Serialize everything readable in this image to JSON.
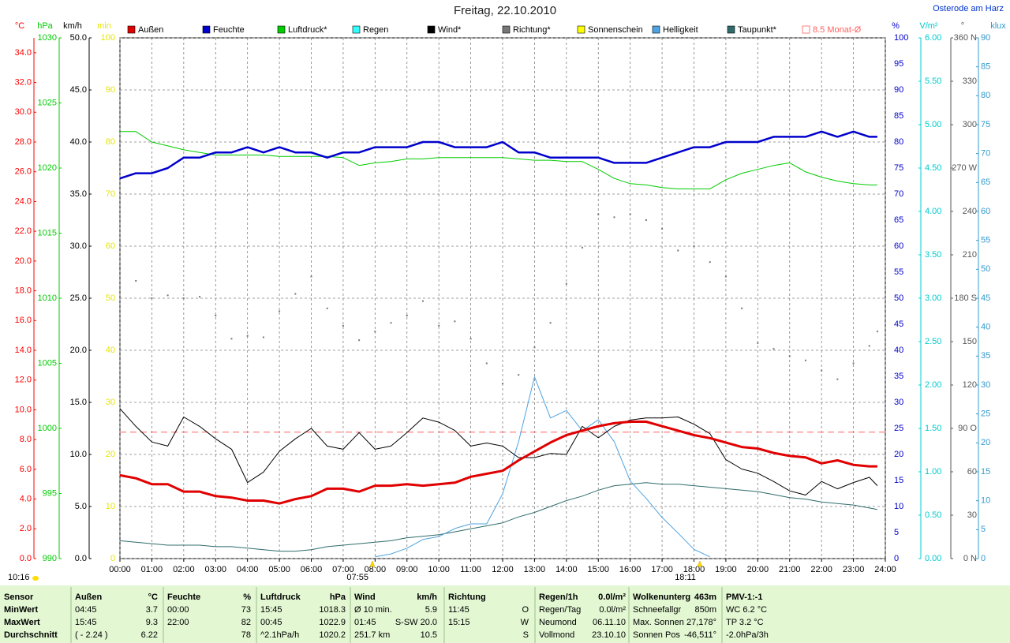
{
  "chart_data": {
    "type": "line",
    "title": "Freitag, 22.10.2010",
    "location": "Osterode am Harz",
    "time": "10:16",
    "x": [
      0,
      0.5,
      1,
      1.5,
      2,
      2.5,
      3,
      3.5,
      4,
      4.5,
      5,
      5.5,
      6,
      6.5,
      7,
      7.5,
      8,
      8.5,
      9,
      9.5,
      10,
      10.5,
      11,
      11.5,
      12,
      12.5,
      13,
      13.5,
      14,
      14.5,
      15,
      15.5,
      16,
      16.5,
      17,
      17.5,
      18,
      18.5,
      19,
      19.5,
      20,
      20.5,
      21,
      21.5,
      22,
      22.5,
      23,
      23.5,
      23.75
    ],
    "xlim": [
      0,
      24
    ],
    "xticks": [
      {
        "value": 0,
        "label": "00:00"
      },
      {
        "value": 1,
        "label": "01:00"
      },
      {
        "value": 2,
        "label": "02:00"
      },
      {
        "value": 3,
        "label": "03:00"
      },
      {
        "value": 4,
        "label": "04:00"
      },
      {
        "value": 5,
        "label": "05:00"
      },
      {
        "value": 6,
        "label": "06:00"
      },
      {
        "value": 7,
        "label": "07:00"
      },
      {
        "value": 8,
        "label": "08:00"
      },
      {
        "value": 9,
        "label": "09:00"
      },
      {
        "value": 10,
        "label": "10:00"
      },
      {
        "value": 11,
        "label": "11:00"
      },
      {
        "value": 12,
        "label": "12:00"
      },
      {
        "value": 13,
        "label": "13:00"
      },
      {
        "value": 14,
        "label": "14:00"
      },
      {
        "value": 15,
        "label": "15:00"
      },
      {
        "value": 16,
        "label": "16:00"
      },
      {
        "value": 17,
        "label": "17:00"
      },
      {
        "value": 18,
        "label": "18:00"
      },
      {
        "value": 19,
        "label": "19:00"
      },
      {
        "value": 20,
        "label": "20:00"
      },
      {
        "value": 21,
        "label": "21:00"
      },
      {
        "value": 22,
        "label": "22:00"
      },
      {
        "value": 23,
        "label": "23:00"
      },
      {
        "value": 24,
        "label": "24:00"
      }
    ],
    "grid": true,
    "grid_axis": "km/h",
    "axes": [
      {
        "title": "°C",
        "color": "#ff0000",
        "lim": [
          0,
          35
        ],
        "ticks": [
          {
            "value": 0,
            "label": "0.0"
          },
          {
            "value": 2,
            "label": "2.0"
          },
          {
            "value": 4,
            "label": "4.0"
          },
          {
            "value": 6,
            "label": "6.0"
          },
          {
            "value": 8,
            "label": "8.0"
          },
          {
            "value": 10,
            "label": "10.0"
          },
          {
            "value": 12,
            "label": "12.0"
          },
          {
            "value": 14,
            "label": "14.0"
          },
          {
            "value": 16,
            "label": "16.0"
          },
          {
            "value": 18,
            "label": "18.0"
          },
          {
            "value": 20,
            "label": "20.0"
          },
          {
            "value": 22,
            "label": "22.0"
          },
          {
            "value": 24,
            "label": "24.0"
          },
          {
            "value": 26,
            "label": "26.0"
          },
          {
            "value": 28,
            "label": "28.0"
          },
          {
            "value": 30,
            "label": "30.0"
          },
          {
            "value": 32,
            "label": "32.0"
          },
          {
            "value": 34,
            "label": "34.0"
          }
        ]
      },
      {
        "title": "hPa",
        "color": "#00cc00",
        "lim": [
          990,
          1030
        ],
        "ticks": [
          990,
          995,
          1000,
          1005,
          1010,
          1015,
          1020,
          1025,
          1030
        ]
      },
      {
        "title": "km/h",
        "color": "#000000",
        "lim": [
          0,
          50
        ],
        "ticks": [
          {
            "value": 0,
            "label": "0.0"
          },
          {
            "value": 5,
            "label": "5.0"
          },
          {
            "value": 10,
            "label": "10.0"
          },
          {
            "value": 15,
            "label": "15.0"
          },
          {
            "value": 20,
            "label": "20.0"
          },
          {
            "value": 25,
            "label": "25.0"
          },
          {
            "value": 30,
            "label": "30.0"
          },
          {
            "value": 35,
            "label": "35.0"
          },
          {
            "value": 40,
            "label": "40.0"
          },
          {
            "value": 45,
            "label": "45.0"
          },
          {
            "value": 50,
            "label": "50.0"
          }
        ]
      },
      {
        "title": "min",
        "color": "#e6e600",
        "lim": [
          0,
          100
        ],
        "ticks": [
          0,
          10,
          20,
          30,
          40,
          50,
          60,
          70,
          80,
          90,
          100
        ]
      },
      {
        "title": "%",
        "color": "#0000cc",
        "lim": [
          0,
          100
        ],
        "ticks": [
          0,
          5,
          10,
          15,
          20,
          25,
          30,
          35,
          40,
          45,
          50,
          55,
          60,
          65,
          70,
          75,
          80,
          85,
          90,
          95,
          100
        ]
      },
      {
        "title": "V/m²",
        "color": "#00cccc",
        "lim": [
          0,
          6
        ],
        "ticks": [
          {
            "value": 0,
            "label": "0.00"
          },
          {
            "value": 0.5,
            "label": "0.50"
          },
          {
            "value": 1,
            "label": "1.00"
          },
          {
            "value": 1.5,
            "label": "1.50"
          },
          {
            "value": 2,
            "label": "2.00"
          },
          {
            "value": 2.5,
            "label": "2.50"
          },
          {
            "value": 3,
            "label": "3.00"
          },
          {
            "value": 3.5,
            "label": "3.50"
          },
          {
            "value": 4,
            "label": "4.00"
          },
          {
            "value": 4.5,
            "label": "4.50"
          },
          {
            "value": 5,
            "label": "5.00"
          },
          {
            "value": 5.5,
            "label": "5.50"
          },
          {
            "value": 6,
            "label": "6.00"
          }
        ]
      },
      {
        "title": "°",
        "color": "#555555",
        "lim": [
          0,
          360
        ],
        "ticks": [
          {
            "value": 0,
            "label": "0 N"
          },
          30,
          60,
          {
            "value": 90,
            "label": "90 O"
          },
          120,
          150,
          {
            "value": 180,
            "label": "180 S"
          },
          210,
          240,
          {
            "value": 270,
            "label": "270 W"
          },
          300,
          330,
          {
            "value": 360,
            "label": "360 N"
          }
        ]
      },
      {
        "title": "klux",
        "color": "#3399cc",
        "lim": [
          0,
          90
        ],
        "ticks": [
          0,
          5,
          10,
          15,
          20,
          25,
          30,
          35,
          40,
          45,
          50,
          55,
          60,
          65,
          70,
          75,
          80,
          85,
          90
        ]
      }
    ],
    "series": [
      {
        "name": "Außen",
        "color": "#e00000",
        "axis": "°C",
        "width": 3,
        "values": [
          5.6,
          5.4,
          5.0,
          5.0,
          4.5,
          4.5,
          4.2,
          4.1,
          3.9,
          3.9,
          3.7,
          4.0,
          4.2,
          4.7,
          4.7,
          4.5,
          4.9,
          4.9,
          5.0,
          4.9,
          5.0,
          5.1,
          5.5,
          5.7,
          5.9,
          6.6,
          7.2,
          7.8,
          8.3,
          8.6,
          8.9,
          9.1,
          9.2,
          9.2,
          8.9,
          8.6,
          8.3,
          8.1,
          7.8,
          7.5,
          7.4,
          7.1,
          6.9,
          6.8,
          6.4,
          6.6,
          6.3,
          6.2,
          6.2
        ]
      },
      {
        "name": "Feuchte",
        "color": "#0000cc",
        "axis": "%",
        "width": 2.5,
        "values": [
          73,
          74,
          74,
          75,
          77,
          77,
          78,
          78,
          79,
          78,
          79,
          78,
          78,
          77,
          78,
          78,
          79,
          79,
          79,
          80,
          80,
          79,
          79,
          79,
          80,
          78,
          78,
          77,
          77,
          77,
          77,
          76,
          76,
          76,
          77,
          78,
          79,
          79,
          80,
          80,
          80,
          81,
          81,
          81,
          82,
          81,
          82,
          81,
          81
        ]
      },
      {
        "name": "Luftdruck*",
        "color": "#00cc00",
        "axis": "hPa",
        "width": 1,
        "values": [
          1022.8,
          1022.8,
          1022.0,
          1021.7,
          1021.4,
          1021.2,
          1021.0,
          1021.0,
          1021.0,
          1021.0,
          1020.9,
          1020.9,
          1020.9,
          1020.9,
          1020.8,
          1020.2,
          1020.4,
          1020.5,
          1020.7,
          1020.7,
          1020.8,
          1020.8,
          1020.8,
          1020.8,
          1020.8,
          1020.7,
          1020.6,
          1020.6,
          1020.5,
          1020.5,
          1019.9,
          1019.2,
          1018.8,
          1018.7,
          1018.5,
          1018.4,
          1018.4,
          1018.4,
          1019.1,
          1019.6,
          1019.9,
          1020.2,
          1020.4,
          1019.7,
          1019.3,
          1019.0,
          1018.8,
          1018.7,
          1018.7
        ]
      },
      {
        "name": "Regen",
        "color": "#33ffff"
      },
      {
        "name": "Wind*",
        "color": "#000000",
        "axis": "km/h",
        "width": 1,
        "values": [
          14.4,
          12.7,
          11.2,
          10.8,
          13.6,
          12.7,
          11.5,
          10.5,
          7.3,
          8.3,
          10.3,
          11.5,
          12.5,
          10.8,
          10.5,
          12.1,
          10.5,
          10.8,
          12.1,
          13.5,
          13.1,
          12.3,
          10.8,
          11.1,
          10.8,
          9.7,
          9.7,
          10.1,
          10.0,
          12.7,
          11.6,
          12.7,
          13.3,
          13.5,
          13.5,
          13.6,
          12.9,
          12.0,
          9.5,
          8.6,
          8.2,
          7.4,
          6.5,
          6.1,
          7.4,
          6.7,
          7.3,
          7.8,
          7.0
        ]
      },
      {
        "name": "Richtung*",
        "color": "#777777",
        "axis": "°",
        "style": "dots",
        "values": [
          201,
          192,
          180,
          182,
          180,
          181,
          168,
          152,
          154,
          153,
          171,
          183,
          195,
          173,
          161,
          151,
          157,
          163,
          168,
          178,
          161,
          164,
          152,
          135,
          121,
          127,
          146,
          163,
          190,
          215,
          238,
          236,
          238,
          234,
          228,
          213,
          216,
          205,
          195,
          173,
          149,
          145,
          140,
          137,
          130,
          124,
          135,
          147,
          157
        ]
      },
      {
        "name": "Sonnenschein",
        "color": "#ffff00"
      },
      {
        "name": "Helligkeit",
        "color": "#4ea3e0",
        "axis": "klux",
        "width": 1,
        "values": [
          null,
          null,
          null,
          null,
          null,
          null,
          null,
          null,
          null,
          null,
          null,
          null,
          null,
          null,
          null,
          null,
          0.3,
          0.8,
          1.8,
          3.3,
          3.8,
          5.2,
          6.0,
          6.0,
          11.2,
          20.2,
          31.4,
          24.3,
          25.6,
          22.1,
          24.0,
          20.2,
          13.4,
          10.4,
          7.1,
          4.4,
          1.6,
          0.3,
          null,
          null,
          null,
          null,
          null,
          null,
          null,
          null,
          null,
          null,
          null
        ]
      },
      {
        "name": "Taupunkt*",
        "color": "#2f6b6b",
        "axis": "°C",
        "width": 1,
        "values": [
          1.2,
          1.1,
          1.0,
          0.9,
          0.9,
          0.9,
          0.8,
          0.8,
          0.7,
          0.6,
          0.5,
          0.5,
          0.6,
          0.8,
          0.9,
          1.0,
          1.1,
          1.2,
          1.4,
          1.5,
          1.6,
          1.8,
          2.0,
          2.2,
          2.4,
          2.8,
          3.1,
          3.5,
          3.9,
          4.2,
          4.6,
          4.9,
          5.0,
          5.1,
          5.0,
          5.0,
          4.9,
          4.8,
          4.7,
          4.6,
          4.5,
          4.3,
          4.1,
          4.0,
          3.8,
          3.7,
          3.6,
          3.4,
          3.3
        ]
      }
    ],
    "reference": {
      "label": "8.5 Monat-Ø",
      "value": 8.5,
      "axis": "°C",
      "color": "#ff6060"
    },
    "sunrise": {
      "label": "07:55",
      "value": 7.9167
    },
    "sunset": {
      "label": "18:11",
      "value": 18.1833
    }
  },
  "stats": {
    "groups": [
      {
        "rows": [
          [
            "Sensor"
          ],
          [
            "MinWert"
          ],
          [
            "MaxWert"
          ],
          [
            "Durchschnitt"
          ]
        ]
      },
      {
        "rows": [
          [
            "Außen",
            "°C"
          ],
          [
            "04:45",
            "3.7"
          ],
          [
            "15:45",
            "9.3"
          ],
          [
            "( - 2.24 )",
            "6.22"
          ]
        ]
      },
      {
        "rows": [
          [
            "Feuchte",
            "%"
          ],
          [
            "00:00",
            "73"
          ],
          [
            "22:00",
            "82"
          ],
          [
            null,
            "78"
          ]
        ]
      },
      {
        "rows": [
          [
            "Luftdruck",
            "hPa"
          ],
          [
            "15:45",
            "1018.3"
          ],
          [
            "00:45",
            "1022.9"
          ],
          [
            "^2.1hPa/h",
            "1020.2"
          ]
        ]
      },
      {
        "rows": [
          [
            "Wind",
            "km/h"
          ],
          [
            "Ø 10 min.",
            "5.9"
          ],
          [
            "01:45",
            "S-SW 20.0"
          ],
          [
            "251.7 km",
            "10.5"
          ]
        ]
      },
      {
        "rows": [
          [
            "Richtung"
          ],
          [
            "11:45",
            "O"
          ],
          [
            "15:15",
            "W"
          ],
          [
            null,
            "S"
          ]
        ]
      },
      {
        "rows": [
          [
            "Regen/1h",
            "0.0l/m²"
          ],
          [
            "Regen/Tag",
            "0.0l/m²"
          ],
          [
            "Neumond",
            "06.11.10"
          ],
          [
            "Vollmond",
            "23.10.10"
          ]
        ]
      },
      {
        "rows": [
          [
            "Wolkenunterg",
            "463m"
          ],
          [
            "Schneefallgr",
            "850m"
          ],
          [
            "Max. Sonnen",
            "27,178°"
          ],
          [
            "Sonnen Pos",
            "-46,511°"
          ]
        ]
      },
      {
        "rows": [
          [
            "PMV-1:-1"
          ],
          [
            "WC 6.2 °C"
          ],
          [
            "TP 3.2 °C"
          ],
          [
            "-2.0hPa/3h"
          ]
        ]
      }
    ]
  }
}
